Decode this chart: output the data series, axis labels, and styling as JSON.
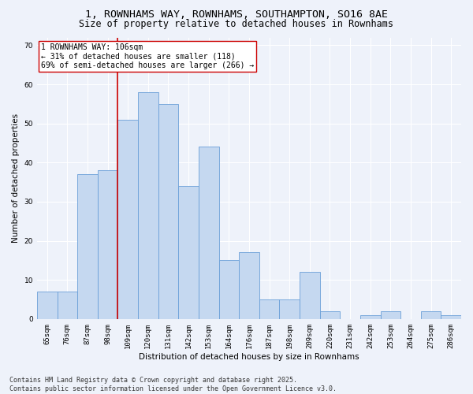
{
  "title_line1": "1, ROWNHAMS WAY, ROWNHAMS, SOUTHAMPTON, SO16 8AE",
  "title_line2": "Size of property relative to detached houses in Rownhams",
  "xlabel": "Distribution of detached houses by size in Rownhams",
  "ylabel": "Number of detached properties",
  "categories": [
    "65sqm",
    "76sqm",
    "87sqm",
    "98sqm",
    "109sqm",
    "120sqm",
    "131sqm",
    "142sqm",
    "153sqm",
    "164sqm",
    "176sqm",
    "187sqm",
    "198sqm",
    "209sqm",
    "220sqm",
    "231sqm",
    "242sqm",
    "253sqm",
    "264sqm",
    "275sqm",
    "286sqm"
  ],
  "values": [
    7,
    7,
    37,
    38,
    51,
    58,
    55,
    34,
    44,
    15,
    17,
    5,
    5,
    12,
    2,
    0,
    1,
    2,
    0,
    2,
    1
  ],
  "bar_color": "#c5d8f0",
  "bar_edge_color": "#6a9fd8",
  "vline_color": "#cc0000",
  "vline_x": 3.5,
  "annotation_text": "1 ROWNHAMS WAY: 106sqm\n← 31% of detached houses are smaller (118)\n69% of semi-detached houses are larger (266) →",
  "ylim": [
    0,
    72
  ],
  "yticks": [
    0,
    10,
    20,
    30,
    40,
    50,
    60,
    70
  ],
  "background_color": "#eef2fa",
  "grid_color": "#ffffff",
  "footer_line1": "Contains HM Land Registry data © Crown copyright and database right 2025.",
  "footer_line2": "Contains public sector information licensed under the Open Government Licence v3.0.",
  "title_fontsize": 9.5,
  "subtitle_fontsize": 8.5,
  "axis_label_fontsize": 7.5,
  "tick_fontsize": 6.5,
  "annotation_fontsize": 7,
  "footer_fontsize": 6
}
